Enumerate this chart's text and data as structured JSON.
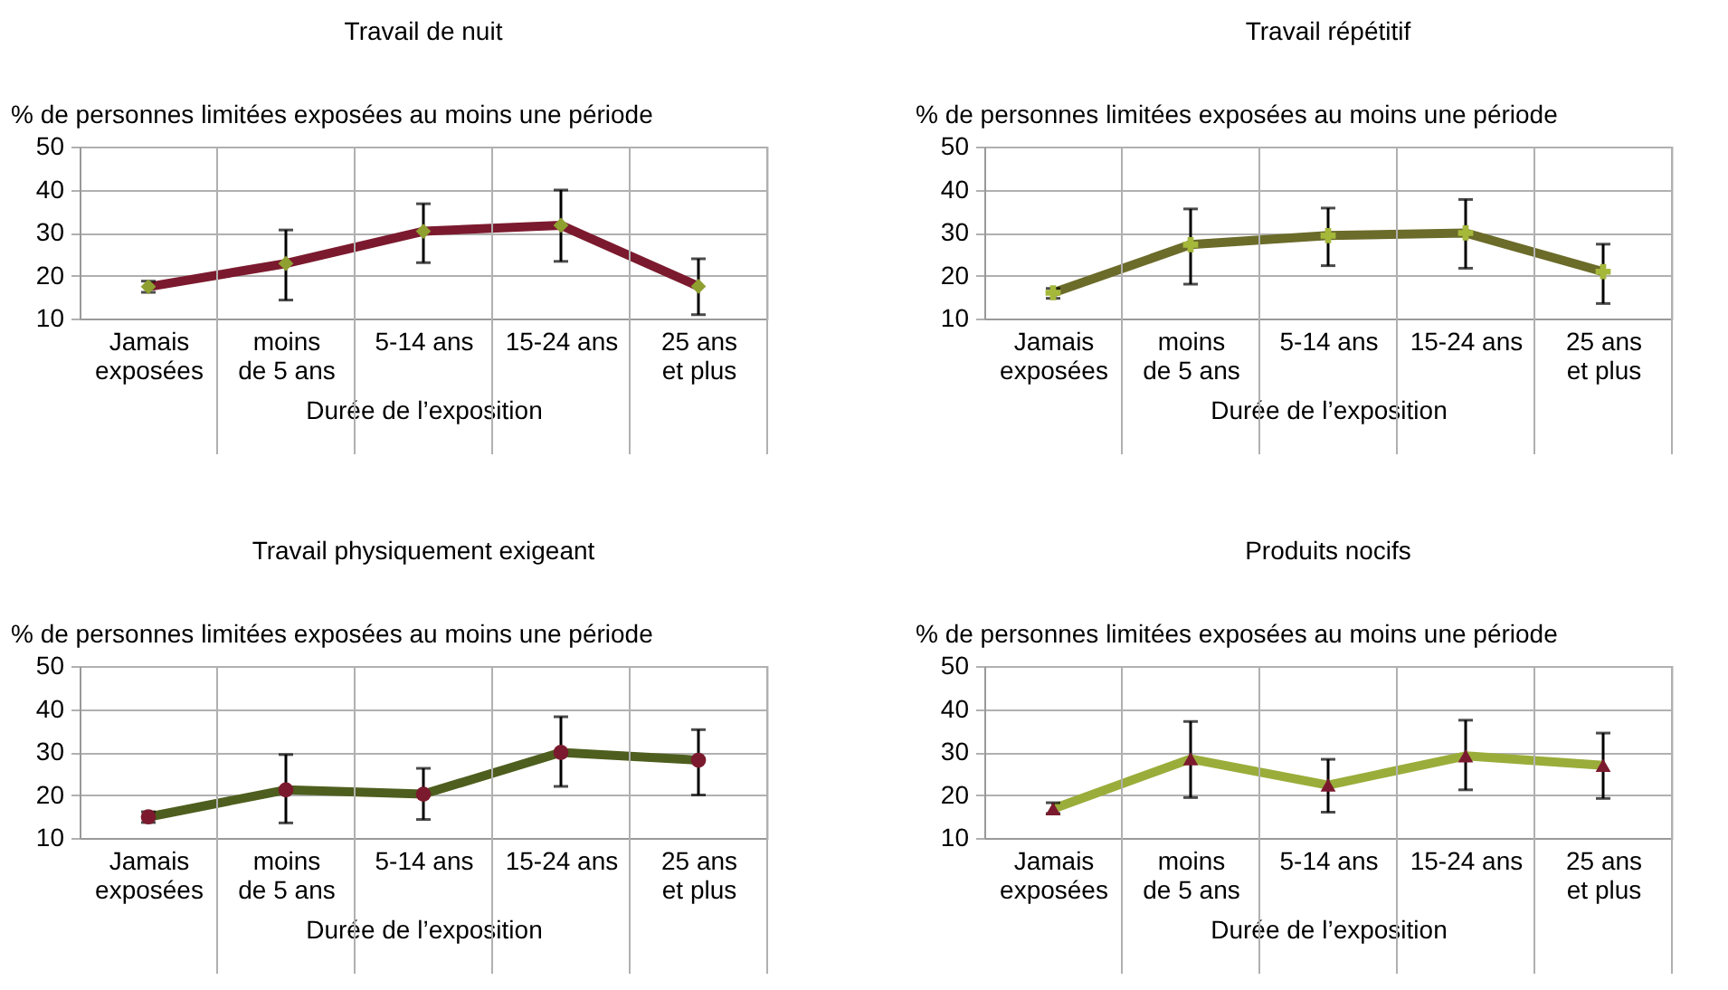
{
  "chart_data": [
    {
      "type": "line",
      "title": "Travail de nuit",
      "ylabel": "% de personnes limitées exposées au moins une période",
      "xlabel": "Durée de l’exposition",
      "categories": [
        "Jamais\nexposées",
        "moins\nde 5 ans",
        "5-14 ans",
        "15-24 ans",
        "25 ans\net plus"
      ],
      "series": [
        {
          "color": "#7b1a2e",
          "colors": [
            "#8fa030",
            "#8fa030",
            "#8fa030",
            "#8fa030",
            "#8fa030"
          ],
          "values": [
            17.4,
            22.8,
            30.3,
            31.7,
            17.5
          ],
          "errors": [
            [
              16.1,
              18.7
            ],
            [
              14.3,
              30.6
            ],
            [
              23.0,
              36.7
            ],
            [
              23.3,
              39.9
            ],
            [
              10.9,
              23.9
            ]
          ]
        }
      ],
      "marker": "diamond",
      "ylim": [
        10,
        50
      ],
      "yticks": [
        10,
        20,
        30,
        40,
        50
      ],
      "grid": true
    },
    {
      "type": "line",
      "title": "Travail répétitif",
      "ylabel": "% de personnes limitées exposées au moins une période",
      "xlabel": "Durée de l’exposition",
      "categories": [
        "Jamais\nexposées",
        "moins\nde 5 ans",
        "5-14 ans",
        "15-24 ans",
        "25 ans\net plus"
      ],
      "series": [
        {
          "color": "#6b6b2a",
          "colors": [
            "#a5b83a",
            "#a5b83a",
            "#a5b83a",
            "#a5b83a",
            "#a5b83a"
          ],
          "values": [
            16.0,
            27.2,
            29.3,
            29.9,
            20.9
          ],
          "errors": [
            [
              14.7,
              17.0
            ],
            [
              18.0,
              35.5
            ],
            [
              22.3,
              35.7
            ],
            [
              21.7,
              37.7
            ],
            [
              13.5,
              27.3
            ]
          ]
        }
      ],
      "marker": "cross",
      "ylim": [
        10,
        50
      ],
      "yticks": [
        10,
        20,
        30,
        40,
        50
      ],
      "grid": true
    },
    {
      "type": "line",
      "title": "Travail physiquement exigeant",
      "ylabel": "% de personnes limitées exposées au moins une période",
      "xlabel": "Durée de l’exposition",
      "categories": [
        "Jamais\nexposées",
        "moins\nde 5 ans",
        "5-14 ans",
        "15-24 ans",
        "25 ans\net plus"
      ],
      "series": [
        {
          "color": "#4e5e1e",
          "colors": [
            "#7b1a2e",
            "#7b1a2e",
            "#7b1a2e",
            "#7b1a2e",
            "#7b1a2e"
          ],
          "values": [
            14.9,
            21.2,
            20.2,
            29.9,
            28.1
          ],
          "errors": [
            [
              13.6,
              16.1
            ],
            [
              13.5,
              29.4
            ],
            [
              14.3,
              26.2
            ],
            [
              22.0,
              38.2
            ],
            [
              20.0,
              35.2
            ]
          ]
        }
      ],
      "marker": "circle",
      "ylim": [
        10,
        50
      ],
      "yticks": [
        10,
        20,
        30,
        40,
        50
      ],
      "grid": true
    },
    {
      "type": "line",
      "title": "Produits nocifs",
      "ylabel": "% de personnes limitées exposées au moins une période",
      "xlabel": "Durée de l’exposition",
      "categories": [
        "Jamais\nexposées",
        "moins\nde 5 ans",
        "5-14 ans",
        "15-24 ans",
        "25 ans\net plus"
      ],
      "series": [
        {
          "color": "#9aad3a",
          "colors": [
            "#7b1a2e",
            "#7b1a2e",
            "#7b1a2e",
            "#7b1a2e",
            "#7b1a2e"
          ],
          "values": [
            16.8,
            28.4,
            22.3,
            29.1,
            26.9
          ],
          "errors": [
            [
              15.7,
              18.2
            ],
            [
              19.4,
              37.1
            ],
            [
              16.0,
              28.3
            ],
            [
              21.2,
              37.4
            ],
            [
              19.2,
              34.4
            ]
          ]
        }
      ],
      "marker": "triangle",
      "ylim": [
        10,
        50
      ],
      "yticks": [
        10,
        20,
        30,
        40,
        50
      ],
      "grid": true
    }
  ]
}
